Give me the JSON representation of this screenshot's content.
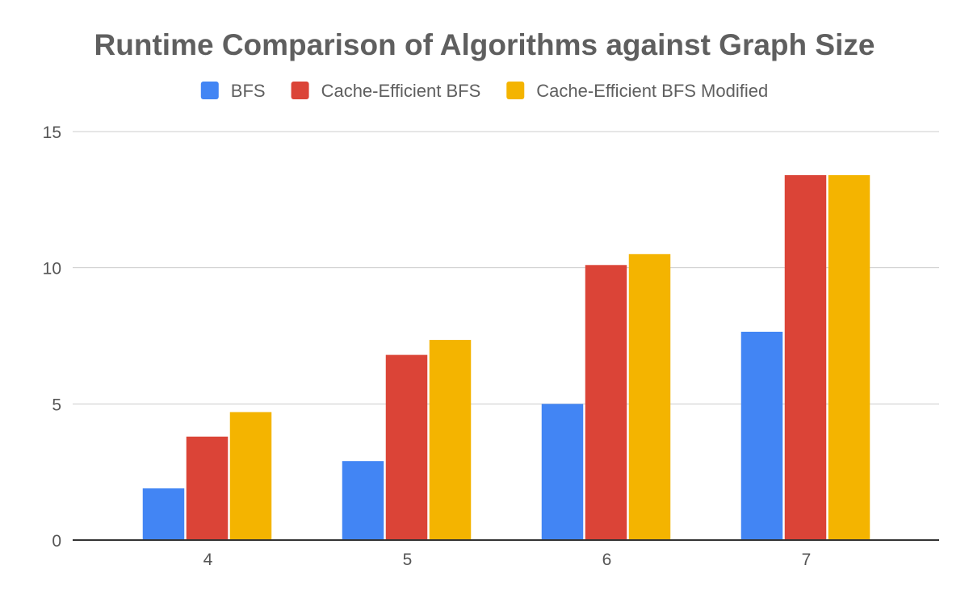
{
  "chart_data": {
    "type": "bar",
    "title": "Runtime Comparison of Algorithms against Graph Size",
    "xlabel": "",
    "ylabel": "",
    "categories": [
      "4",
      "5",
      "6",
      "7"
    ],
    "series": [
      {
        "name": "BFS",
        "color": "#4285f4",
        "values": [
          1.9,
          2.9,
          5.0,
          7.65
        ]
      },
      {
        "name": "Cache-Efficient BFS",
        "color": "#db4437",
        "values": [
          3.8,
          6.8,
          10.1,
          13.4
        ]
      },
      {
        "name": "Cache-Efficient BFS Modified",
        "color": "#f4b400",
        "values": [
          4.7,
          7.35,
          10.5,
          13.4
        ]
      }
    ],
    "ylim": [
      0,
      15
    ],
    "yticks": [
      0,
      5,
      10,
      15
    ],
    "grid": true,
    "legend_position": "top"
  }
}
